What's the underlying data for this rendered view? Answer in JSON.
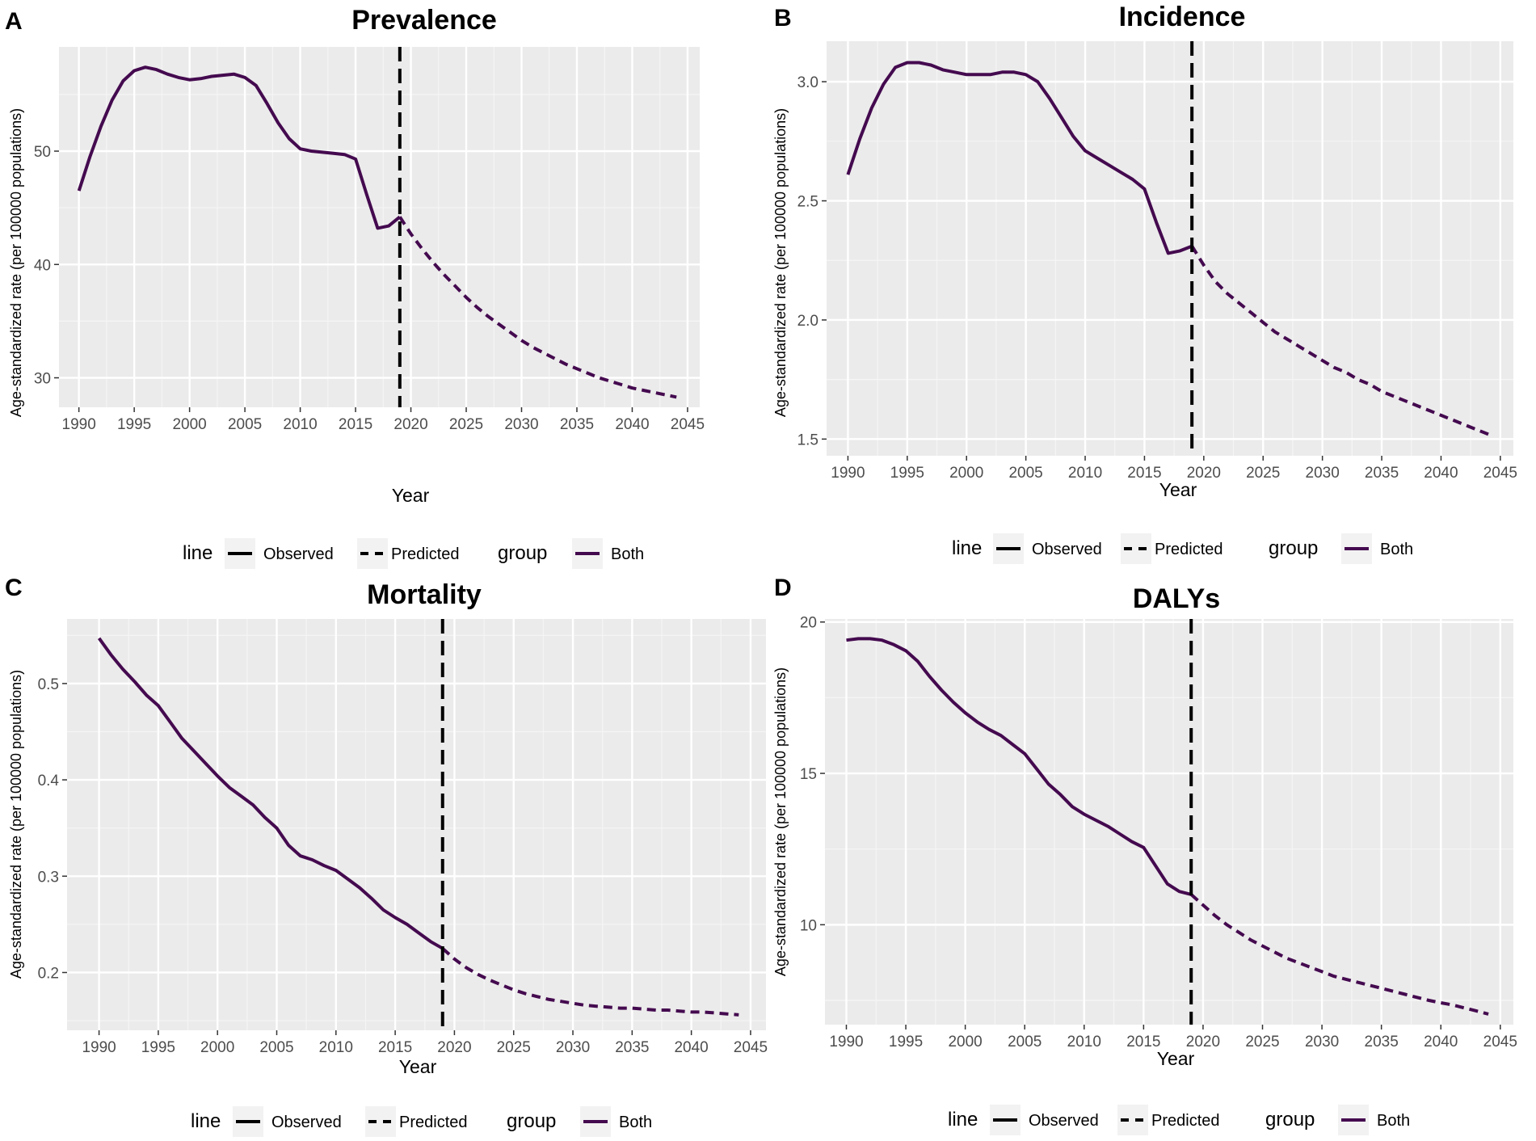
{
  "colors": {
    "panel_bg": "#ebebeb",
    "grid_major": "#ffffff",
    "grid_minor": "#f5f5f5",
    "series": "#440a4f",
    "vline": "#000000",
    "legend_key_bg": "#f2f2f2"
  },
  "legend": {
    "line_title": "line",
    "observed": "Observed",
    "predicted": "Predicted",
    "group_title": "group",
    "group_label": "Both"
  },
  "chart_data": [
    {
      "panel_letter": "A",
      "type": "line",
      "title": "Prevalence",
      "xlabel": "Year",
      "ylabel": "Age-standardized rate (per 100000 populations)",
      "xlim": [
        1988.2,
        2046.1
      ],
      "ylim": [
        27.4,
        59.2
      ],
      "x_ticks": [
        1990,
        1995,
        2000,
        2005,
        2010,
        2015,
        2020,
        2025,
        2030,
        2035,
        2040,
        2045
      ],
      "x_tick_labels": [
        "1990",
        "1995",
        "2000",
        "2005",
        "2010",
        "2015",
        "2020",
        "2025",
        "2030",
        "2035",
        "2040",
        "2045"
      ],
      "y_ticks": [
        30,
        40,
        50
      ],
      "y_tick_labels": [
        "30",
        "40",
        "50"
      ],
      "vline_x": 2019,
      "series": [
        {
          "name": "Observed",
          "group": "Both",
          "linetype": "solid",
          "x": [
            1990,
            1991,
            1992,
            1993,
            1994,
            1995,
            1996,
            1997,
            1998,
            1999,
            2000,
            2001,
            2002,
            2003,
            2004,
            2005,
            2006,
            2007,
            2008,
            2009,
            2010,
            2011,
            2012,
            2013,
            2014,
            2015,
            2016,
            2017,
            2018,
            2019
          ],
          "values": [
            46.5,
            49.5,
            52.2,
            54.5,
            56.2,
            57.1,
            57.4,
            57.2,
            56.8,
            56.5,
            56.3,
            56.4,
            56.6,
            56.7,
            56.8,
            56.5,
            55.8,
            54.2,
            52.5,
            51.1,
            50.2,
            50.0,
            49.9,
            49.8,
            49.7,
            49.3,
            46.2,
            43.2,
            43.4,
            44.2
          ]
        },
        {
          "name": "Predicted",
          "group": "Both",
          "linetype": "dashed",
          "x": [
            2019,
            2020,
            2021,
            2022,
            2023,
            2024,
            2025,
            2026,
            2027,
            2028,
            2029,
            2030,
            2031,
            2032,
            2033,
            2034,
            2035,
            2036,
            2037,
            2038,
            2039,
            2040,
            2041,
            2042,
            2043,
            2044
          ],
          "values": [
            44.2,
            42.7,
            41.4,
            40.2,
            39.1,
            38.1,
            37.1,
            36.2,
            35.4,
            34.7,
            34.0,
            33.3,
            32.7,
            32.2,
            31.7,
            31.2,
            30.8,
            30.4,
            30.0,
            29.7,
            29.4,
            29.1,
            28.9,
            28.7,
            28.5,
            28.3
          ]
        }
      ]
    },
    {
      "panel_letter": "B",
      "type": "line",
      "title": "Incidence",
      "xlabel": "Year",
      "ylabel": "Age-standardized rate (per 100000 populations)",
      "xlim": [
        1988.2,
        2046.1
      ],
      "ylim": [
        1.43,
        3.17
      ],
      "x_ticks": [
        1990,
        1995,
        2000,
        2005,
        2010,
        2015,
        2020,
        2025,
        2030,
        2035,
        2040,
        2045
      ],
      "x_tick_labels": [
        "1990",
        "1995",
        "2000",
        "2005",
        "2010",
        "2015",
        "2020",
        "2025",
        "2030",
        "2035",
        "2040",
        "2045"
      ],
      "y_ticks": [
        1.5,
        2.0,
        2.5,
        3.0
      ],
      "y_tick_labels": [
        "1.5",
        "2.0",
        "2.5",
        "3.0"
      ],
      "vline_x": 2019,
      "series": [
        {
          "name": "Observed",
          "group": "Both",
          "linetype": "solid",
          "x": [
            1990,
            1991,
            1992,
            1993,
            1994,
            1995,
            1996,
            1997,
            1998,
            1999,
            2000,
            2001,
            2002,
            2003,
            2004,
            2005,
            2006,
            2007,
            2008,
            2009,
            2010,
            2011,
            2012,
            2013,
            2014,
            2015,
            2016,
            2017,
            2018,
            2019
          ],
          "values": [
            2.61,
            2.76,
            2.89,
            2.99,
            3.06,
            3.08,
            3.08,
            3.07,
            3.05,
            3.04,
            3.03,
            3.03,
            3.03,
            3.04,
            3.04,
            3.03,
            3.0,
            2.93,
            2.85,
            2.77,
            2.71,
            2.68,
            2.65,
            2.62,
            2.59,
            2.55,
            2.41,
            2.28,
            2.29,
            2.31
          ]
        },
        {
          "name": "Predicted",
          "group": "Both",
          "linetype": "dashed",
          "x": [
            2019,
            2020,
            2021,
            2022,
            2023,
            2024,
            2025,
            2026,
            2027,
            2028,
            2029,
            2030,
            2031,
            2032,
            2033,
            2034,
            2035,
            2036,
            2037,
            2038,
            2039,
            2040,
            2041,
            2042,
            2043,
            2044
          ],
          "values": [
            2.31,
            2.23,
            2.16,
            2.11,
            2.07,
            2.03,
            1.99,
            1.95,
            1.92,
            1.89,
            1.86,
            1.83,
            1.8,
            1.78,
            1.75,
            1.73,
            1.7,
            1.68,
            1.66,
            1.64,
            1.62,
            1.6,
            1.58,
            1.56,
            1.54,
            1.52
          ]
        }
      ]
    },
    {
      "panel_letter": "C",
      "type": "line",
      "title": "Mortality",
      "xlabel": "Year",
      "ylabel": "Age-standardized rate (per 100000 populations)",
      "xlim": [
        1987.3,
        2046.3
      ],
      "ylim": [
        0.14,
        0.567
      ],
      "x_ticks": [
        1990,
        1995,
        2000,
        2005,
        2010,
        2015,
        2020,
        2025,
        2030,
        2035,
        2040,
        2045
      ],
      "x_tick_labels": [
        "1990",
        "1995",
        "2000",
        "2005",
        "2010",
        "2015",
        "2020",
        "2025",
        "2030",
        "2035",
        "2040",
        "2045"
      ],
      "y_ticks": [
        0.2,
        0.3,
        0.4,
        0.5
      ],
      "y_tick_labels": [
        "0.2",
        "0.3",
        "0.4",
        "0.5"
      ],
      "vline_x": 2019,
      "series": [
        {
          "name": "Observed",
          "group": "Both",
          "linetype": "solid",
          "x": [
            1990,
            1991,
            1992,
            1993,
            1994,
            1995,
            1996,
            1997,
            1998,
            1999,
            2000,
            2001,
            2002,
            2003,
            2004,
            2005,
            2006,
            2007,
            2008,
            2009,
            2010,
            2011,
            2012,
            2013,
            2014,
            2015,
            2016,
            2017,
            2018,
            2019
          ],
          "values": [
            0.547,
            0.53,
            0.515,
            0.502,
            0.488,
            0.477,
            0.46,
            0.443,
            0.43,
            0.417,
            0.404,
            0.392,
            0.383,
            0.374,
            0.361,
            0.35,
            0.332,
            0.321,
            0.317,
            0.311,
            0.306,
            0.297,
            0.288,
            0.277,
            0.265,
            0.257,
            0.25,
            0.241,
            0.232,
            0.225
          ]
        },
        {
          "name": "Predicted",
          "group": "Both",
          "linetype": "dashed",
          "x": [
            2019,
            2020,
            2021,
            2022,
            2023,
            2024,
            2025,
            2026,
            2027,
            2028,
            2029,
            2030,
            2031,
            2032,
            2033,
            2034,
            2035,
            2036,
            2037,
            2038,
            2039,
            2040,
            2041,
            2042,
            2043,
            2044
          ],
          "values": [
            0.225,
            0.214,
            0.205,
            0.198,
            0.192,
            0.187,
            0.182,
            0.178,
            0.175,
            0.172,
            0.17,
            0.168,
            0.166,
            0.165,
            0.164,
            0.163,
            0.163,
            0.162,
            0.161,
            0.161,
            0.16,
            0.159,
            0.159,
            0.158,
            0.157,
            0.156
          ]
        }
      ]
    },
    {
      "panel_letter": "D",
      "type": "line",
      "title": "DALYs",
      "xlabel": "Year",
      "ylabel": "Age-standardized rate (per 100000 populations)",
      "xlim": [
        1988.2,
        2046.1
      ],
      "ylim": [
        6.7,
        20.1
      ],
      "x_ticks": [
        1990,
        1995,
        2000,
        2005,
        2010,
        2015,
        2020,
        2025,
        2030,
        2035,
        2040,
        2045
      ],
      "x_tick_labels": [
        "1990",
        "1995",
        "2000",
        "2005",
        "2010",
        "2015",
        "2020",
        "2025",
        "2030",
        "2035",
        "2040",
        "2045"
      ],
      "y_ticks": [
        10,
        15,
        20
      ],
      "y_tick_labels": [
        "10",
        "15",
        "20"
      ],
      "vline_x": 2019,
      "series": [
        {
          "name": "Observed",
          "group": "Both",
          "linetype": "solid",
          "x": [
            1990,
            1991,
            1992,
            1993,
            1994,
            1995,
            1996,
            1997,
            1998,
            1999,
            2000,
            2001,
            2002,
            2003,
            2004,
            2005,
            2006,
            2007,
            2008,
            2009,
            2010,
            2011,
            2012,
            2013,
            2014,
            2015,
            2016,
            2017,
            2018,
            2019
          ],
          "values": [
            19.4,
            19.45,
            19.45,
            19.4,
            19.25,
            19.05,
            18.7,
            18.2,
            17.75,
            17.35,
            17.0,
            16.7,
            16.45,
            16.25,
            15.95,
            15.65,
            15.15,
            14.65,
            14.3,
            13.9,
            13.65,
            13.45,
            13.25,
            13.0,
            12.75,
            12.55,
            11.95,
            11.35,
            11.1,
            11.0
          ]
        },
        {
          "name": "Predicted",
          "group": "Both",
          "linetype": "dashed",
          "x": [
            2019,
            2020,
            2021,
            2022,
            2023,
            2024,
            2025,
            2026,
            2027,
            2028,
            2029,
            2030,
            2031,
            2032,
            2033,
            2034,
            2035,
            2036,
            2037,
            2038,
            2039,
            2040,
            2041,
            2042,
            2043,
            2044
          ],
          "values": [
            11.0,
            10.65,
            10.3,
            10.0,
            9.75,
            9.5,
            9.3,
            9.1,
            8.9,
            8.75,
            8.6,
            8.45,
            8.3,
            8.2,
            8.1,
            8.0,
            7.9,
            7.8,
            7.7,
            7.6,
            7.5,
            7.42,
            7.35,
            7.25,
            7.15,
            7.05
          ]
        }
      ]
    }
  ]
}
